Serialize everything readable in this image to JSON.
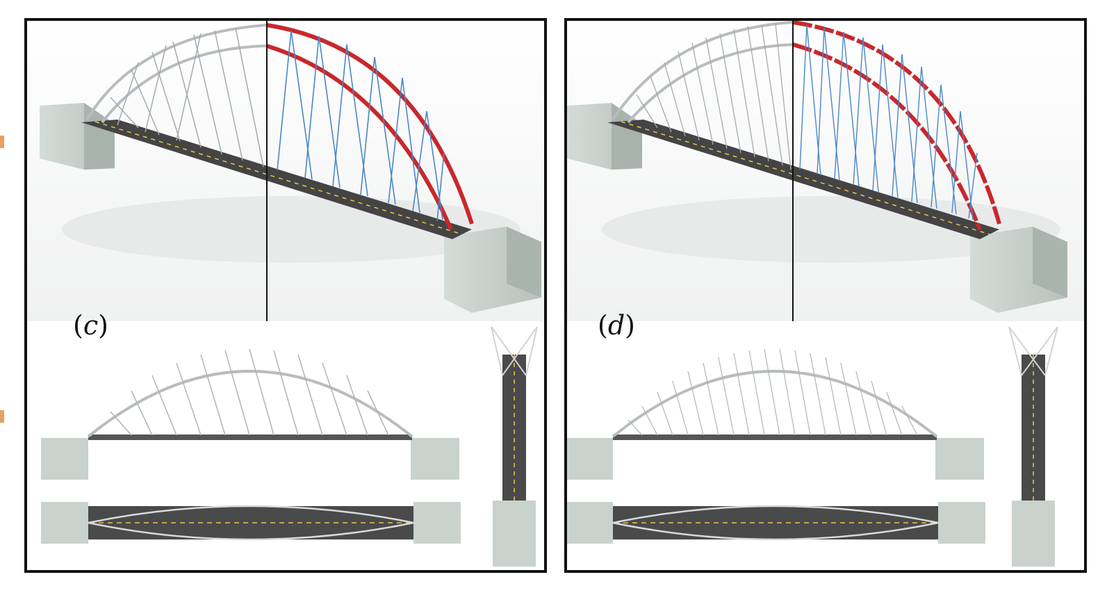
{
  "figure": {
    "panels": [
      {
        "id": "c",
        "label": "c"
      },
      {
        "id": "d",
        "label": "d"
      }
    ]
  },
  "colors": {
    "frame": "#111111",
    "arch_steel": "#b8bcbf",
    "compression_member": "#c8282c",
    "tension_cable": "#4a86c8",
    "deck": "#4a4a4a",
    "deck_centerline": "#e6c84a",
    "abutment": "#c9d2cd"
  }
}
